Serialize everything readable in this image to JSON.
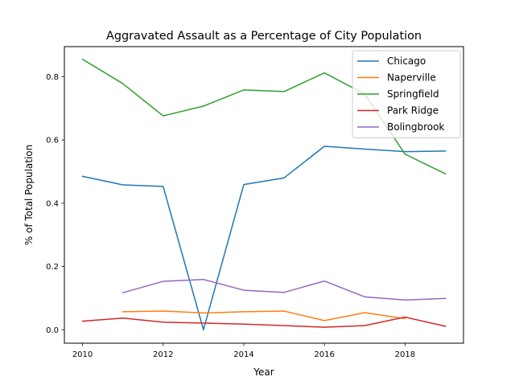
{
  "chart_data": {
    "type": "line",
    "title": "Aggravated Assault as a Percentage of City Population",
    "xlabel": "Year",
    "ylabel": "% of Total Population",
    "xlim": [
      2009.55,
      2019.45
    ],
    "ylim": [
      -0.0425,
      0.895
    ],
    "xticks": [
      2010,
      2012,
      2014,
      2016,
      2018
    ],
    "yticks": [
      0.0,
      0.2,
      0.4,
      0.6,
      0.8
    ],
    "ytick_labels": [
      "0.0",
      "0.2",
      "0.4",
      "0.6",
      "0.8"
    ],
    "grid": false,
    "legend_position": "top-right",
    "series": [
      {
        "name": "Chicago",
        "color": "#1f77b4",
        "x": [
          2010,
          2011,
          2012,
          2013,
          2014,
          2015,
          2016,
          2017,
          2018,
          2019
        ],
        "values": [
          0.485,
          0.458,
          0.453,
          0.0,
          0.459,
          0.48,
          0.58,
          0.571,
          0.563,
          0.565
        ]
      },
      {
        "name": "Naperville",
        "color": "#ff7f0e",
        "x": [
          2011,
          2012,
          2013,
          2014,
          2015,
          2016,
          2017,
          2018
        ],
        "values": [
          0.057,
          0.059,
          0.053,
          0.057,
          0.059,
          0.029,
          0.054,
          0.035
        ]
      },
      {
        "name": "Springfield",
        "color": "#2ca02c",
        "x": [
          2010,
          2011,
          2012,
          2013,
          2014,
          2015,
          2016,
          2017,
          2018,
          2019
        ],
        "values": [
          0.855,
          0.778,
          0.676,
          0.707,
          0.758,
          0.753,
          0.812,
          0.745,
          0.555,
          0.493
        ]
      },
      {
        "name": "Park Ridge",
        "color": "#d62728",
        "x": [
          2010,
          2011,
          2012,
          2013,
          2014,
          2015,
          2016,
          2017,
          2018,
          2019
        ],
        "values": [
          0.027,
          0.037,
          0.024,
          0.021,
          0.018,
          0.013,
          0.008,
          0.013,
          0.04,
          0.011
        ]
      },
      {
        "name": "Bolingbrook",
        "color": "#9467bd",
        "x": [
          2011,
          2012,
          2013,
          2014,
          2015,
          2016,
          2017,
          2018,
          2019
        ],
        "values": [
          0.117,
          0.153,
          0.159,
          0.125,
          0.118,
          0.154,
          0.104,
          0.094,
          0.099
        ]
      }
    ]
  }
}
